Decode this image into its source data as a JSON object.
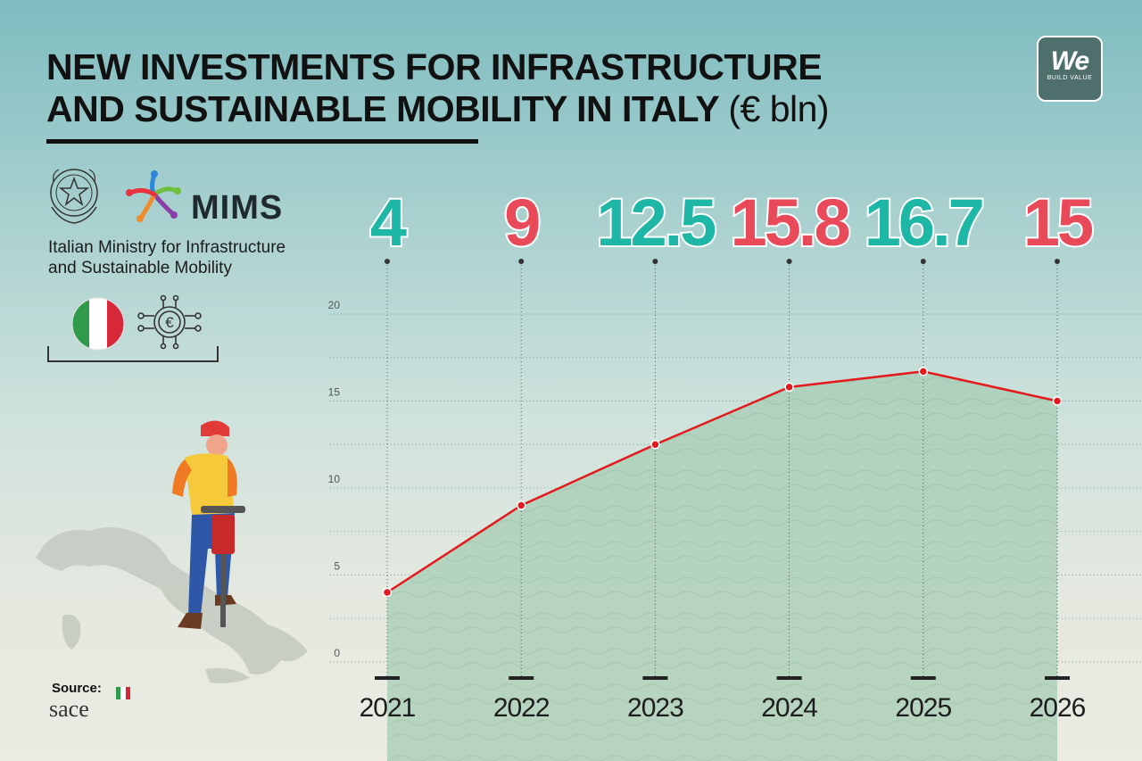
{
  "header": {
    "title_line1": "NEW INVESTMENTS FOR INFRASTRUCTURE",
    "title_line2": "AND SUSTAINABLE MOBILITY IN ITALY",
    "title_unit": "(€ bln)"
  },
  "brand": {
    "logo_text": "We",
    "logo_subtext": "BUILD VALUE"
  },
  "ministry": {
    "acronym": "MIMS",
    "name_line1": "Italian Ministry for Infrastructure",
    "name_line2": "and Sustainable Mobility"
  },
  "source": {
    "label": "Source:",
    "name": "sace"
  },
  "icons": [
    "italian-emblem-icon",
    "mims-logo-icon",
    "italy-flag-icon",
    "euro-network-icon",
    "worker-jackhammer-icon",
    "italy-map-icon"
  ],
  "colors": {
    "teal": "#1eb6a4",
    "red": "#e94a5a",
    "line": "#e3191c",
    "area": "#9ec7ac"
  },
  "chart_data": {
    "type": "line",
    "x": [
      "2021",
      "2022",
      "2023",
      "2024",
      "2025",
      "2026"
    ],
    "values": [
      4,
      9,
      12.5,
      15.8,
      16.7,
      15
    ],
    "value_labels": [
      "4",
      "9",
      "12.5",
      "15.8",
      "16.7",
      "15"
    ],
    "value_label_colors": [
      "#1eb6a4",
      "#e94a5a",
      "#1eb6a4",
      "#e94a5a",
      "#1eb6a4",
      "#e94a5a"
    ],
    "yticks": [
      0,
      5,
      10,
      15,
      20
    ],
    "ylim": [
      0,
      20
    ],
    "grid": true,
    "area_fill": true
  }
}
